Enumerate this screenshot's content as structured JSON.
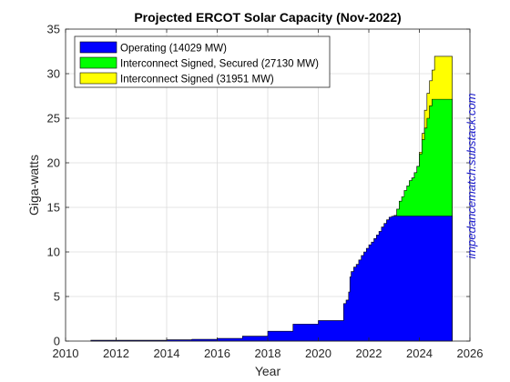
{
  "chart_data": {
    "type": "area",
    "title": "Projected ERCOT Solar Capacity (Nov-2022)",
    "xlabel": "Year",
    "ylabel": "Giga-watts",
    "xlim": [
      2010,
      2026
    ],
    "ylim": [
      0,
      35
    ],
    "x_ticks": [
      2010,
      2012,
      2014,
      2016,
      2018,
      2020,
      2022,
      2024,
      2026
    ],
    "y_ticks": [
      0,
      5,
      10,
      15,
      20,
      25,
      30,
      35
    ],
    "grid": true,
    "legend_position": "top-left",
    "series": [
      {
        "name": "Operating (14029 MW)",
        "color": "#0000ff",
        "x": [
          2011.0,
          2014.0,
          2015.0,
          2016.0,
          2017.0,
          2018.0,
          2019.0,
          2020.0,
          2021.0,
          2021.1,
          2021.2,
          2021.25,
          2021.3,
          2021.4,
          2021.5,
          2021.6,
          2021.7,
          2021.8,
          2021.9,
          2022.0,
          2022.1,
          2022.2,
          2022.3,
          2022.4,
          2022.5,
          2022.6,
          2022.7,
          2022.8,
          2022.9,
          2023.0,
          2025.3
        ],
        "y": [
          0.1,
          0.15,
          0.2,
          0.3,
          0.55,
          1.1,
          1.9,
          2.3,
          4.2,
          4.6,
          5.5,
          7.2,
          7.8,
          8.3,
          8.6,
          9.1,
          9.6,
          10.0,
          10.4,
          10.8,
          11.1,
          11.5,
          11.9,
          12.3,
          12.8,
          13.2,
          13.6,
          13.9,
          14.0,
          14.03,
          14.03
        ]
      },
      {
        "name": "Interconnect Signed, Secured (27130 MW)",
        "color": "#00ff00",
        "x": [
          2011.0,
          2023.0,
          2023.1,
          2023.2,
          2023.3,
          2023.4,
          2023.5,
          2023.6,
          2023.7,
          2023.8,
          2023.9,
          2024.0,
          2024.1,
          2024.2,
          2024.3,
          2024.4,
          2024.5,
          2025.3
        ],
        "y": [
          0,
          14.1,
          14.8,
          15.7,
          16.2,
          16.9,
          17.4,
          18.0,
          18.3,
          18.9,
          19.6,
          21.0,
          22.6,
          23.9,
          25.0,
          26.4,
          27.13,
          27.13
        ]
      },
      {
        "name": "Interconnect Signed (31951 MW)",
        "color": "#ffff00",
        "x": [
          2011.0,
          2023.7,
          2023.8,
          2023.9,
          2024.0,
          2024.1,
          2024.2,
          2024.3,
          2024.4,
          2024.5,
          2024.6,
          2025.3
        ],
        "y": [
          0,
          18.3,
          18.9,
          19.6,
          21.2,
          23.3,
          25.9,
          27.8,
          29.2,
          30.4,
          31.95,
          31.95
        ]
      }
    ]
  },
  "watermark": {
    "text": "impedancematch.substack.com",
    "color": "#1a1acc"
  }
}
